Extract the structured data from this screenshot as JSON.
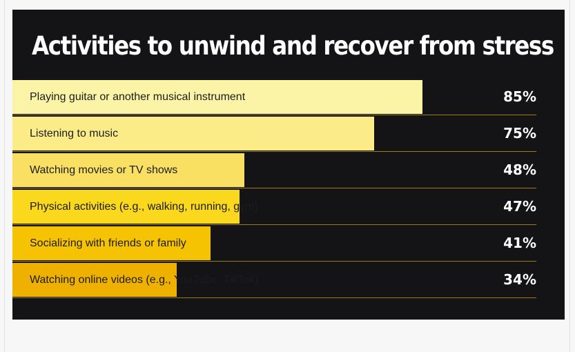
{
  "chart_data": {
    "type": "bar",
    "orientation": "horizontal",
    "title": "Activities to unwind and recover from stress",
    "categories": [
      "Playing guitar or another musical instrument",
      "Listening to music",
      "Watching movies or TV shows",
      "Physical activities (e.g., walking, running, gym)",
      "Socializing with friends or family",
      "Watching online videos (e.g., YouTube, TikTok)"
    ],
    "values": [
      85,
      75,
      48,
      47,
      41,
      34
    ],
    "value_labels": [
      "85%",
      "75%",
      "48%",
      "47%",
      "41%",
      "34%"
    ],
    "unit": "%",
    "xlim": [
      0,
      100
    ],
    "grid": false,
    "legend": "none"
  },
  "colors": {
    "panel_background": "#141416",
    "page_background": "#f7f7f7",
    "title_text": "#ffffff",
    "value_text": "#ffffff",
    "label_text": "#1c1c1c",
    "divider": "#c9a400",
    "bar_fills": [
      "#fbf4a6",
      "#fbec87",
      "#fae062",
      "#fad81e",
      "#f6c302",
      "#efb100"
    ]
  }
}
